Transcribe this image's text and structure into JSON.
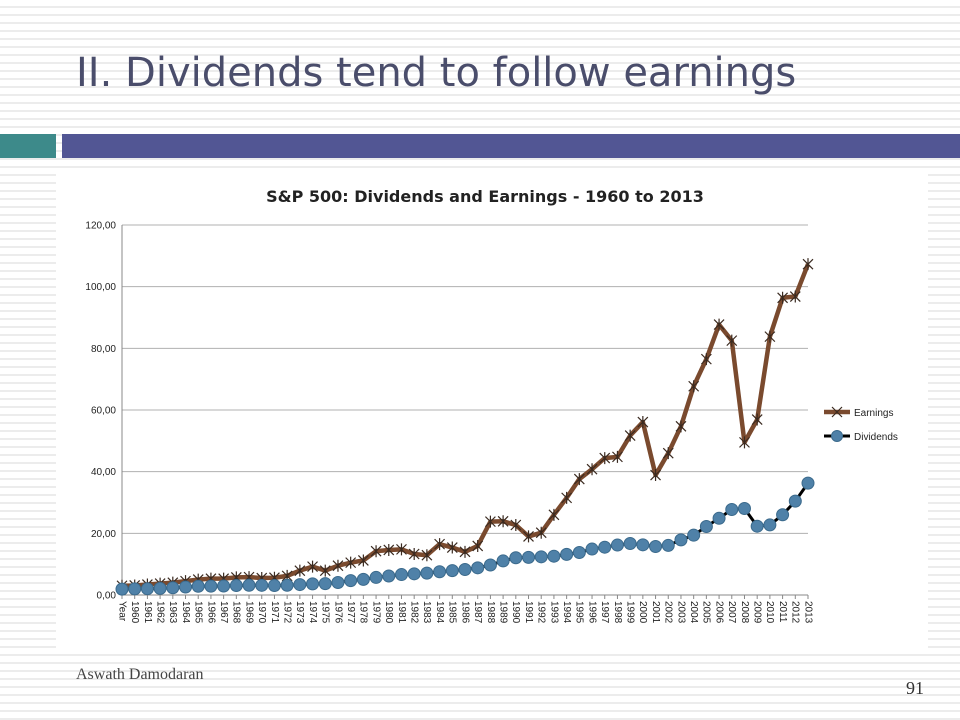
{
  "slide": {
    "title": "II. Dividends tend to follow earnings",
    "author": "Aswath Damodaran",
    "page_number": "91"
  },
  "colors": {
    "title_text": "#4a4d6b",
    "accent_teal": "#3d8a8a",
    "accent_bar": "#525694",
    "earnings_line": "#7a4a2e",
    "dividends_marker": "#4f81a8",
    "dividends_line": "#000000",
    "grid": "#b0b0b0"
  },
  "chart_data": {
    "type": "line",
    "title": "S&P 500: Dividends and Earnings - 1960 to 2013",
    "xlabel": "",
    "ylabel": "",
    "ylim": [
      0,
      120
    ],
    "y_ticks": [
      "0,00",
      "20,00",
      "40,00",
      "60,00",
      "80,00",
      "100,00",
      "120,00"
    ],
    "y_tick_values": [
      0,
      20,
      40,
      60,
      80,
      100,
      120
    ],
    "grid": true,
    "legend_position": "right",
    "categories": [
      "Year",
      "1960",
      "1961",
      "1962",
      "1963",
      "1964",
      "1965",
      "1966",
      "1967",
      "1968",
      "1969",
      "1970",
      "1971",
      "1972",
      "1973",
      "1974",
      "1975",
      "1976",
      "1977",
      "1978",
      "1979",
      "1980",
      "1981",
      "1982",
      "1983",
      "1984",
      "1985",
      "1986",
      "1987",
      "1988",
      "1989",
      "1990",
      "1991",
      "1992",
      "1993",
      "1994",
      "1995",
      "1996",
      "1997",
      "1998",
      "1999",
      "2000",
      "2001",
      "2002",
      "2003",
      "2004",
      "2005",
      "2006",
      "2007",
      "2008",
      "2009",
      "2010",
      "2011",
      "2012",
      "2013"
    ],
    "series": [
      {
        "name": "Earnings",
        "style": "line-x",
        "values": [
          3.0,
          3.1,
          3.4,
          3.7,
          4.0,
          4.5,
          5.0,
          5.3,
          5.3,
          5.7,
          5.8,
          5.5,
          5.6,
          6.2,
          7.9,
          9.2,
          7.9,
          9.5,
          10.5,
          11.2,
          14.2,
          14.6,
          14.8,
          13.3,
          12.9,
          16.5,
          15.4,
          14.0,
          15.9,
          23.8,
          23.9,
          22.7,
          19.0,
          20.2,
          26.0,
          31.5,
          37.6,
          40.8,
          44.4,
          44.8,
          51.7,
          56.1,
          38.9,
          46.0,
          54.7,
          67.7,
          76.5,
          87.7,
          82.5,
          49.5,
          56.9,
          83.8,
          96.4,
          96.8,
          107.3
        ]
      },
      {
        "name": "Dividends",
        "style": "line-circle",
        "values": [
          1.9,
          1.98,
          2.04,
          2.15,
          2.35,
          2.58,
          2.83,
          2.88,
          2.92,
          3.07,
          3.16,
          3.14,
          3.07,
          3.15,
          3.38,
          3.6,
          3.68,
          4.05,
          4.67,
          5.07,
          5.7,
          6.16,
          6.63,
          6.87,
          7.09,
          7.53,
          7.9,
          8.28,
          8.81,
          9.73,
          11.05,
          12.09,
          12.2,
          12.38,
          12.58,
          13.18,
          13.79,
          14.9,
          15.5,
          16.2,
          16.71,
          16.27,
          15.74,
          16.08,
          17.88,
          19.4,
          22.22,
          24.88,
          27.73,
          28.05,
          22.31,
          22.73,
          26.02,
          30.44,
          36.28
        ]
      }
    ]
  }
}
